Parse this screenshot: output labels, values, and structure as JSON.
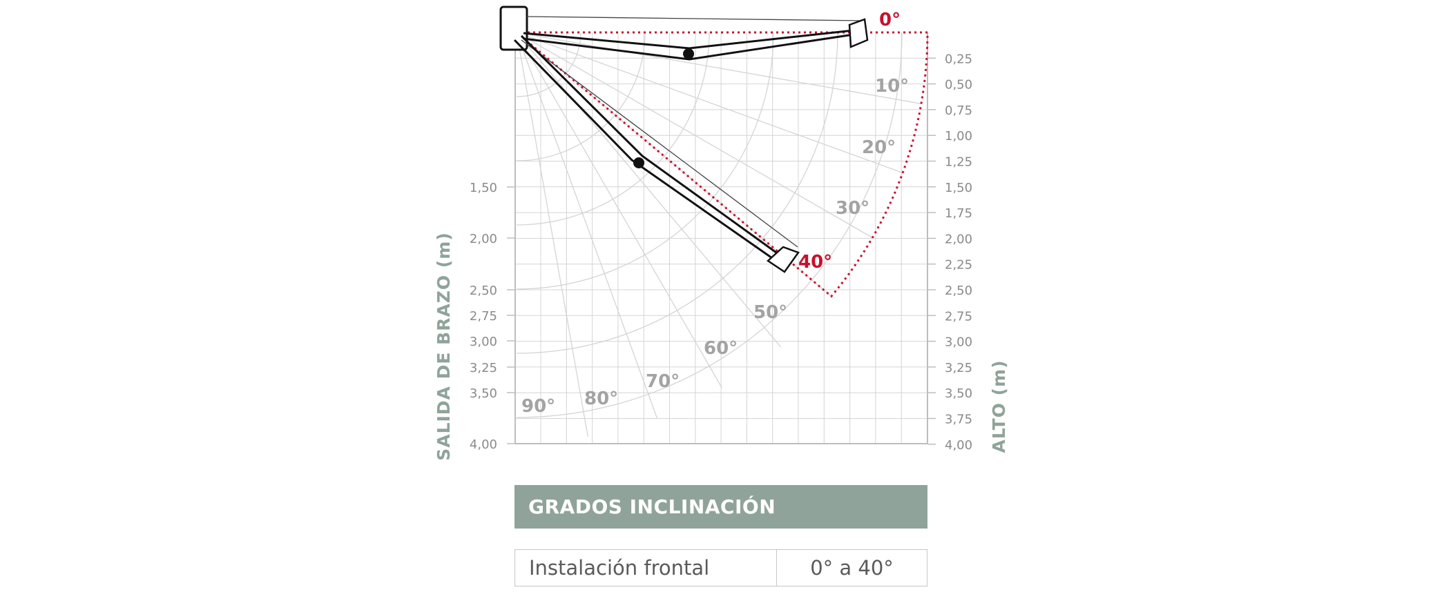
{
  "diagram": {
    "left_axis_title": "SALIDA DE BRAZO (m)",
    "right_axis_title": "ALTO (m)",
    "left_tick_labels": [
      "1,50",
      "2,00",
      "2,50",
      "2,75",
      "3,00",
      "3,25",
      "3,50",
      "4,00"
    ],
    "right_tick_labels": [
      "0,25",
      "0,50",
      "0,75",
      "1,00",
      "1,25",
      "1,50",
      "1,75",
      "2,00",
      "2,25",
      "2,50",
      "2,75",
      "3,00",
      "3,25",
      "3,50",
      "3,75",
      "4,00"
    ],
    "angle_labels": [
      {
        "text": "0°",
        "highlight": true
      },
      {
        "text": "10°",
        "highlight": false
      },
      {
        "text": "20°",
        "highlight": false
      },
      {
        "text": "30°",
        "highlight": false
      },
      {
        "text": "40°",
        "highlight": true
      },
      {
        "text": "50°",
        "highlight": false
      },
      {
        "text": "60°",
        "highlight": false
      },
      {
        "text": "70°",
        "highlight": false
      },
      {
        "text": "80°",
        "highlight": false
      },
      {
        "text": "90°",
        "highlight": false
      }
    ],
    "colors": {
      "accent_red": "#c8102e",
      "axis_title": "#8fa39a",
      "grid": "#d4d4d4",
      "angle_label": "#a3a3a3",
      "tick_label": "#8a8a8a"
    }
  },
  "grados": {
    "header": "GRADOS INCLINACIÓN",
    "rows": [
      {
        "label": "Instalación frontal",
        "value": "0° a 40°"
      }
    ]
  }
}
